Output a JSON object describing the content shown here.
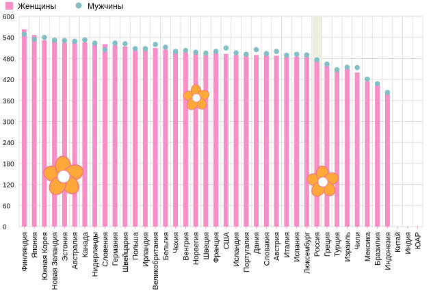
{
  "chart_data": {
    "type": "bar",
    "title": "",
    "xlabel": "",
    "ylabel": "",
    "ylim": [
      0,
      600
    ],
    "yticks": [
      0,
      60,
      120,
      180,
      240,
      300,
      360,
      420,
      480,
      540,
      600
    ],
    "grid": true,
    "legend_position": "top-left",
    "highlight_category": "Россия",
    "categories": [
      "Финляндия",
      "Япония",
      "Южная Корея",
      "Новая Зеландия",
      "Эстония",
      "Австралия",
      "Канада",
      "Нидерланды",
      "Словения",
      "Германия",
      "Швейцария",
      "Польша",
      "Ирландия",
      "Великобритания",
      "Бельгия",
      "Чехия",
      "Венгрия",
      "Норвегия",
      "Швеция",
      "Франция",
      "США",
      "Исландия",
      "Португалия",
      "Дания",
      "Словакия",
      "Австрия",
      "Италия",
      "Испания",
      "Люксембург",
      "Россия",
      "Греция",
      "Турция",
      "Израиль",
      "Чили",
      "Мексика",
      "Бразилия",
      "Индонезия",
      "Китай",
      "Индия",
      "ЮАР"
    ],
    "series": [
      {
        "name": "Женщины",
        "kind": "bar",
        "color": "#f78fc6",
        "values": [
          563,
          547,
          532,
          530,
          525,
          525,
          526,
          520,
          521,
          518,
          514,
          503,
          506,
          510,
          505,
          498,
          497,
          495,
          490,
          498,
          493,
          490,
          488,
          490,
          489,
          488,
          486,
          485,
          486,
          472,
          462,
          450,
          455,
          440,
          414,
          405,
          382,
          null,
          null,
          null
        ]
      },
      {
        "name": "Мужчины",
        "kind": "dot",
        "color": "#7fbfc5",
        "values": [
          549,
          535,
          540,
          532,
          531,
          529,
          533,
          524,
          505,
          524,
          522,
          508,
          508,
          520,
          512,
          500,
          503,
          498,
          495,
          500,
          510,
          496,
          492,
          505,
          494,
          500,
          489,
          492,
          490,
          476,
          464,
          448,
          455,
          454,
          421,
          408,
          383,
          null,
          null,
          null
        ]
      }
    ]
  },
  "legend": {
    "women_label": "Женщины",
    "men_label": "Мужчины"
  }
}
